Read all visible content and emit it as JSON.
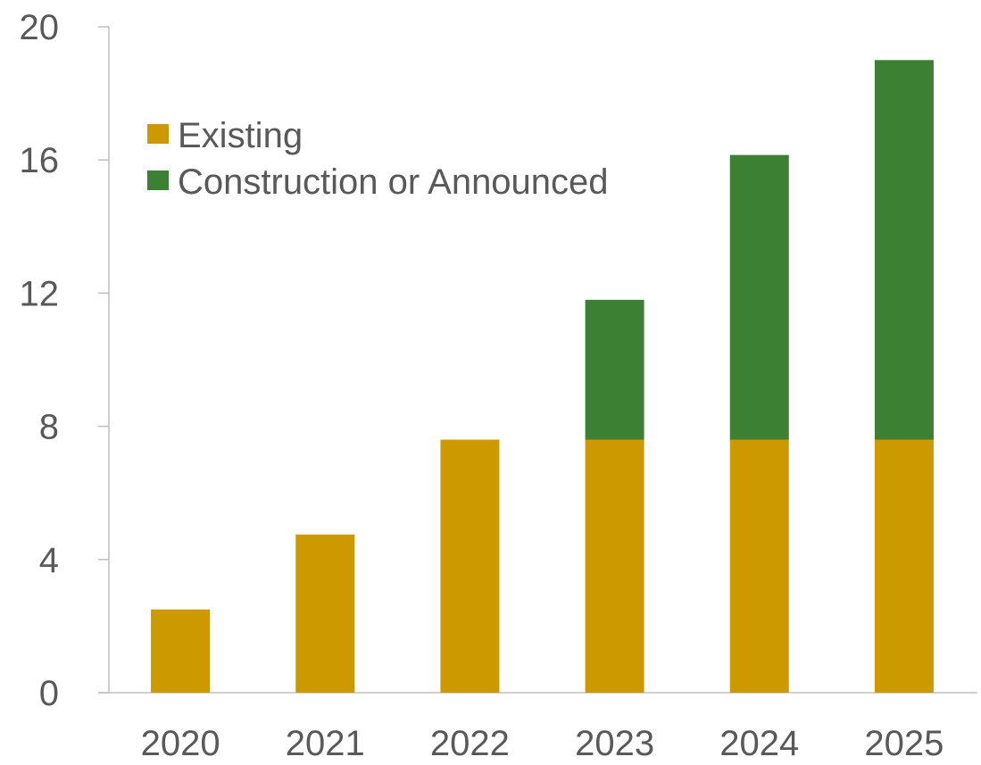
{
  "chart_data": {
    "type": "bar",
    "stacked": true,
    "categories": [
      "2020",
      "2021",
      "2022",
      "2023",
      "2024",
      "2025"
    ],
    "series": [
      {
        "name": "Existing",
        "color": "#CC9900",
        "values": [
          2.5,
          4.75,
          7.6,
          7.6,
          7.6,
          7.6
        ]
      },
      {
        "name": "Construction or Announced",
        "color": "#3C8033",
        "values": [
          0,
          0,
          0,
          4.2,
          8.55,
          11.4
        ]
      }
    ],
    "y_ticks": [
      "0",
      "4",
      "8",
      "12",
      "16",
      "20"
    ],
    "ylim": [
      0,
      20
    ],
    "title": "",
    "xlabel": "",
    "ylabel": "",
    "grid": false,
    "legend_position": "top-left"
  }
}
